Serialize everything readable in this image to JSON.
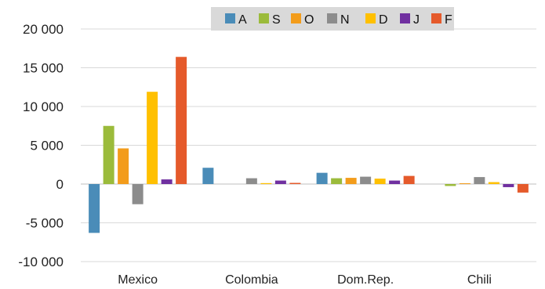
{
  "chart_data": {
    "type": "bar",
    "categories": [
      "Mexico",
      "Colombia",
      "Dom.Rep.",
      "Chili"
    ],
    "series": [
      {
        "name": "A",
        "color": "#4a8cb8",
        "values": [
          -6300,
          2100,
          1450,
          0
        ]
      },
      {
        "name": "S",
        "color": "#9bbb3b",
        "values": [
          7500,
          0,
          750,
          -250
        ]
      },
      {
        "name": "O",
        "color": "#f39c1b",
        "values": [
          4600,
          0,
          800,
          100
        ]
      },
      {
        "name": "N",
        "color": "#8c8c8c",
        "values": [
          -2600,
          750,
          950,
          900
        ]
      },
      {
        "name": "D",
        "color": "#ffc000",
        "values": [
          11900,
          120,
          700,
          250
        ]
      },
      {
        "name": "J",
        "color": "#7030a0",
        "values": [
          600,
          450,
          450,
          -400
        ]
      },
      {
        "name": "F",
        "color": "#e55a2b",
        "values": [
          16400,
          150,
          1050,
          -1100
        ]
      }
    ],
    "ylim": [
      -10000,
      20000
    ],
    "yticks": [
      20000,
      15000,
      10000,
      5000,
      0,
      -5000,
      -10000
    ],
    "ytick_labels": [
      "20 000",
      "15 000",
      "10 000",
      "5 000",
      "0",
      "-5 000",
      "-10 000"
    ],
    "legend_position": "top",
    "grid": true
  }
}
